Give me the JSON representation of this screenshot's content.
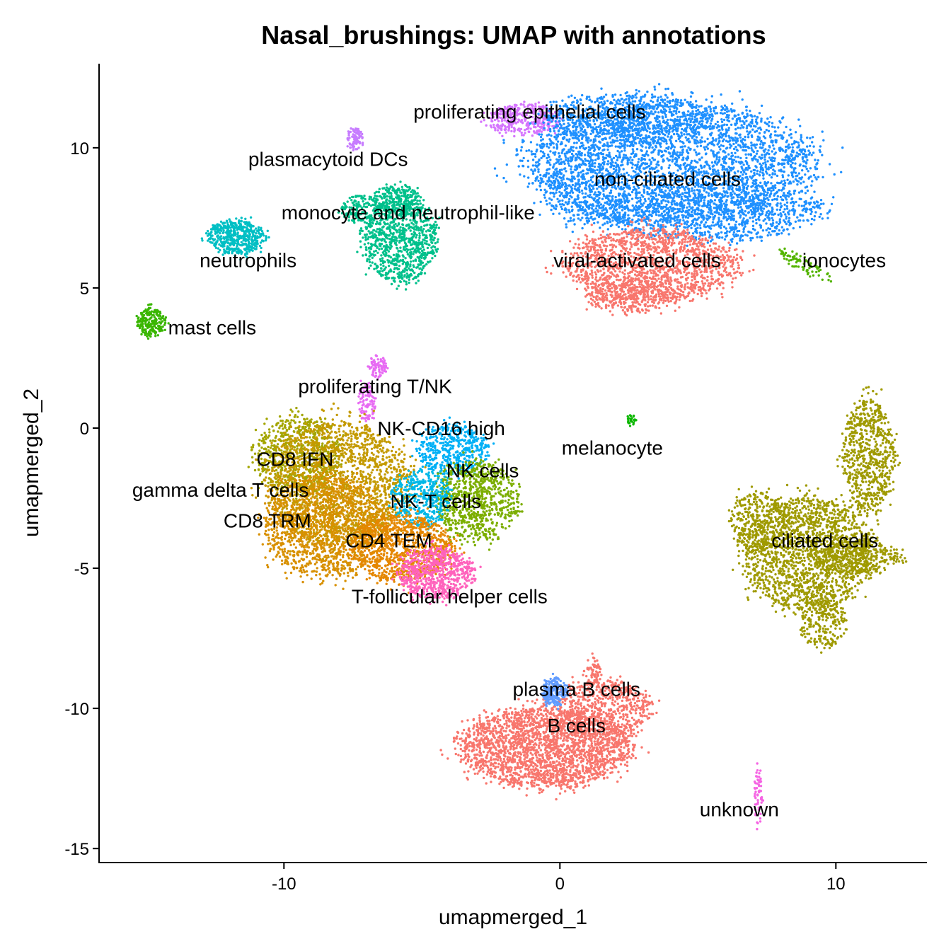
{
  "chart_data": {
    "type": "scatter",
    "title": "Nasal_brushings: UMAP with annotations",
    "xlabel": "umapmerged_1",
    "ylabel": "umapmerged_2",
    "xlim": [
      -16.7,
      13.3
    ],
    "ylim": [
      -15.5,
      13.0
    ],
    "xticks": [
      {
        "value": -10,
        "label": "-10"
      },
      {
        "value": 0,
        "label": "0"
      },
      {
        "value": 10,
        "label": "10"
      }
    ],
    "yticks": [
      {
        "value": -15,
        "label": "-15"
      },
      {
        "value": -10,
        "label": "-10"
      },
      {
        "value": -5,
        "label": "-5"
      },
      {
        "value": 0,
        "label": "0"
      },
      {
        "value": 5,
        "label": "5"
      },
      {
        "value": 10,
        "label": "10"
      }
    ],
    "grid": false,
    "legend": "none",
    "clusters": [
      {
        "name": "proliferating epithelial cells",
        "color": "#D575FE",
        "label_x": -1.1,
        "label_y": 11.3,
        "regions": [
          {
            "cx": -1.3,
            "cy": 11.0,
            "rx": 1.3,
            "ry": 0.55,
            "n": 350
          }
        ]
      },
      {
        "name": "non-ciliated cells",
        "color": "#1E90FF",
        "label_x": 3.9,
        "label_y": 8.9,
        "regions": [
          {
            "cx": 4.0,
            "cy": 9.4,
            "rx": 5.0,
            "ry": 2.2,
            "n": 3200
          },
          {
            "cx": 2.5,
            "cy": 11.0,
            "rx": 3.0,
            "ry": 0.9,
            "n": 700
          },
          {
            "cx": 5.5,
            "cy": 7.7,
            "rx": 4.0,
            "ry": 1.0,
            "n": 900
          },
          {
            "cx": 1.0,
            "cy": 8.5,
            "rx": 1.5,
            "ry": 1.3,
            "n": 300
          }
        ]
      },
      {
        "name": "viral-activated cells",
        "color": "#F8766D",
        "label_x": 2.8,
        "label_y": 6.0,
        "regions": [
          {
            "cx": 3.3,
            "cy": 5.8,
            "rx": 3.0,
            "ry": 1.3,
            "n": 1500
          },
          {
            "cx": 2.5,
            "cy": 4.7,
            "rx": 1.6,
            "ry": 0.6,
            "n": 300
          }
        ]
      },
      {
        "name": "ionocytes",
        "color": "#53B400",
        "label_x": 10.3,
        "label_y": 6.0,
        "regions": [
          {
            "cx": 8.9,
            "cy": 5.8,
            "rx": 1.0,
            "ry": 0.25,
            "n": 80,
            "rot": -28
          }
        ]
      },
      {
        "name": "plasmacytoid DCs",
        "color": "#C77CFF",
        "label_x": -8.4,
        "label_y": 9.6,
        "regions": [
          {
            "cx": -7.4,
            "cy": 10.3,
            "rx": 0.3,
            "ry": 0.4,
            "n": 80
          }
        ]
      },
      {
        "name": "monocyte and neutrophil-like",
        "color": "#00C08B",
        "label_x": -5.5,
        "label_y": 7.7,
        "regions": [
          {
            "cx": -5.8,
            "cy": 6.7,
            "rx": 1.3,
            "ry": 1.5,
            "n": 900
          },
          {
            "cx": -5.9,
            "cy": 8.2,
            "rx": 0.8,
            "ry": 0.5,
            "n": 200
          },
          {
            "cx": -7.2,
            "cy": 7.8,
            "rx": 0.8,
            "ry": 0.5,
            "n": 150
          }
        ]
      },
      {
        "name": "neutrophils",
        "color": "#00BFC4",
        "label_x": -11.3,
        "label_y": 6.0,
        "regions": [
          {
            "cx": -11.7,
            "cy": 6.8,
            "rx": 1.0,
            "ry": 0.6,
            "n": 500
          }
        ]
      },
      {
        "name": "mast cells",
        "color": "#39B600",
        "label_x": -12.6,
        "label_y": 3.6,
        "regions": [
          {
            "cx": -14.8,
            "cy": 3.8,
            "rx": 0.5,
            "ry": 0.5,
            "n": 200
          }
        ]
      },
      {
        "name": "proliferating T/NK",
        "color": "#E76BF3",
        "label_x": -6.7,
        "label_y": 1.5,
        "regions": [
          {
            "cx": -6.6,
            "cy": 2.2,
            "rx": 0.3,
            "ry": 0.4,
            "n": 80
          },
          {
            "cx": -7.0,
            "cy": 0.9,
            "rx": 0.3,
            "ry": 0.7,
            "n": 100
          }
        ]
      },
      {
        "name": "NK-CD16 high",
        "color": "#00B0F6",
        "label_x": -4.3,
        "label_y": 0.0,
        "regions": [
          {
            "cx": -3.9,
            "cy": -0.8,
            "rx": 1.2,
            "ry": 0.9,
            "n": 500
          }
        ]
      },
      {
        "name": "NK cells",
        "color": "#7CAE00",
        "label_x": -2.8,
        "label_y": -1.5,
        "regions": [
          {
            "cx": -3.0,
            "cy": -2.6,
            "rx": 1.5,
            "ry": 1.4,
            "n": 800
          }
        ]
      },
      {
        "name": "CD8 IFN",
        "color": "#A3A500",
        "label_x": -9.6,
        "label_y": -1.1,
        "regions": [
          {
            "cx": -9.5,
            "cy": -1.0,
            "rx": 1.5,
            "ry": 1.4,
            "n": 700
          }
        ]
      },
      {
        "name": "gamma delta T cells",
        "color": "#C49A00",
        "label_x": -12.3,
        "label_y": -2.2,
        "regions": [
          {
            "cx": -8.0,
            "cy": -2.0,
            "rx": 2.5,
            "ry": 2.2,
            "n": 1800
          }
        ]
      },
      {
        "name": "CD8 TRM",
        "color": "#D89000",
        "label_x": -10.6,
        "label_y": -3.3,
        "regions": [
          {
            "cx": -8.5,
            "cy": -3.5,
            "rx": 2.2,
            "ry": 1.8,
            "n": 1400
          }
        ]
      },
      {
        "name": "NK-T cells",
        "color": "#00B8E7",
        "label_x": -4.5,
        "label_y": -2.6,
        "regions": [
          {
            "cx": -5.0,
            "cy": -2.5,
            "rx": 1.0,
            "ry": 1.0,
            "n": 400
          }
        ]
      },
      {
        "name": "CD4 TEM",
        "color": "#E58700",
        "label_x": -6.2,
        "label_y": -4.0,
        "regions": [
          {
            "cx": -5.7,
            "cy": -4.3,
            "rx": 1.8,
            "ry": 1.2,
            "n": 1000
          }
        ]
      },
      {
        "name": "T-follicular helper cells",
        "color": "#FF62BC",
        "label_x": -4.0,
        "label_y": -6.0,
        "regions": [
          {
            "cx": -4.5,
            "cy": -5.2,
            "rx": 1.3,
            "ry": 0.9,
            "n": 700
          }
        ]
      },
      {
        "name": "ciliated cells",
        "color": "#9F9A00",
        "label_x": 9.6,
        "label_y": -4.0,
        "regions": [
          {
            "cx": 9.0,
            "cy": -4.5,
            "rx": 2.3,
            "ry": 2.0,
            "n": 1800
          },
          {
            "cx": 11.2,
            "cy": -1.0,
            "rx": 0.9,
            "ry": 2.0,
            "n": 700
          },
          {
            "cx": 7.2,
            "cy": -3.3,
            "rx": 1.0,
            "ry": 1.0,
            "n": 300
          },
          {
            "cx": 9.5,
            "cy": -7.0,
            "rx": 0.8,
            "ry": 0.9,
            "n": 200
          },
          {
            "cx": 10.8,
            "cy": -4.6,
            "rx": 1.6,
            "ry": 0.6,
            "n": 350
          }
        ]
      },
      {
        "name": "melanocyte",
        "color": "#0CB702",
        "label_x": 1.9,
        "label_y": -0.7,
        "regions": [
          {
            "cx": 2.6,
            "cy": 0.3,
            "rx": 0.15,
            "ry": 0.2,
            "n": 25
          }
        ]
      },
      {
        "name": "B cells",
        "color": "#F8766D",
        "label_x": 0.6,
        "label_y": -10.6,
        "regions": [
          {
            "cx": -0.5,
            "cy": -11.4,
            "rx": 3.0,
            "ry": 1.4,
            "n": 2400
          },
          {
            "cx": 1.6,
            "cy": -10.0,
            "rx": 1.6,
            "ry": 1.0,
            "n": 600
          },
          {
            "cx": 1.2,
            "cy": -8.7,
            "rx": 0.3,
            "ry": 0.5,
            "n": 60
          }
        ]
      },
      {
        "name": "plasma B cells",
        "color": "#619CFF",
        "label_x": 0.6,
        "label_y": -9.3,
        "regions": [
          {
            "cx": -0.2,
            "cy": -9.4,
            "rx": 0.45,
            "ry": 0.5,
            "n": 200
          }
        ]
      },
      {
        "name": "unknown",
        "color": "#F564E3",
        "label_x": 6.5,
        "label_y": -13.6,
        "regions": [
          {
            "cx": 7.2,
            "cy": -13.2,
            "rx": 0.15,
            "ry": 1.0,
            "n": 60
          }
        ]
      }
    ]
  }
}
